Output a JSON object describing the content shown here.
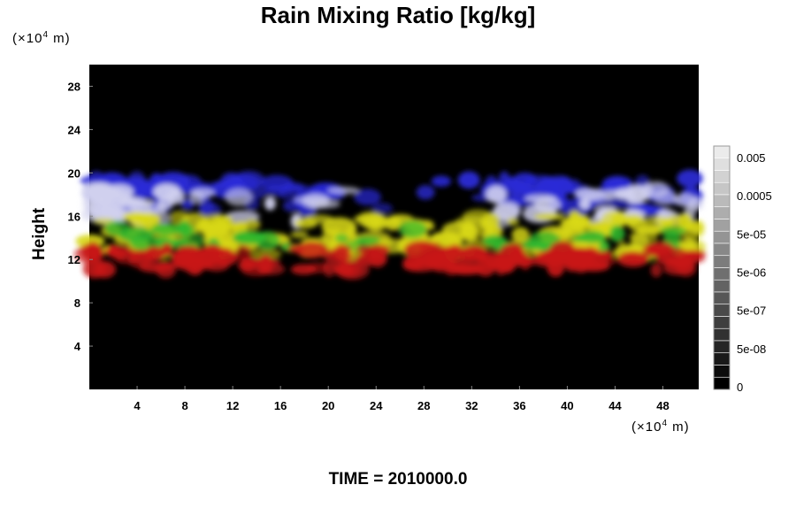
{
  "chart_data": {
    "type": "heatmap",
    "title": "Rain Mixing Ratio [kg/kg]",
    "ylabel": "Height",
    "xunit_prefix": "(×10",
    "xunit_exp": "4",
    "xunit_suffix": " m)",
    "yunit_prefix": "(×10",
    "yunit_exp": "4",
    "yunit_suffix": " m)",
    "time_label": "TIME = 2010000.0",
    "xlim": [
      0,
      51
    ],
    "ylim": [
      0,
      30
    ],
    "x_ticks": [
      4,
      8,
      12,
      16,
      20,
      24,
      28,
      32,
      36,
      40,
      44,
      48
    ],
    "y_ticks": [
      4,
      8,
      12,
      16,
      20,
      24,
      28
    ],
    "colorbar": {
      "labels": [
        "0.005",
        "0.0005",
        "5e-05",
        "5e-06",
        "5e-07",
        "5e-08",
        "0"
      ],
      "levels": 20
    },
    "layers": [
      {
        "color": "#2a2ad8",
        "y_range": [
          16.5,
          19.5
        ]
      },
      {
        "color": "#d0d0ee",
        "y_range": [
          15.5,
          18.5
        ]
      },
      {
        "color": "#d8d818",
        "y_range": [
          12.5,
          16.0
        ]
      },
      {
        "color": "#2eb82e",
        "y_range": [
          13.0,
          15.0
        ]
      },
      {
        "color": "#c81818",
        "y_range": [
          11.0,
          13.0
        ]
      }
    ],
    "background_color": "#000000"
  }
}
